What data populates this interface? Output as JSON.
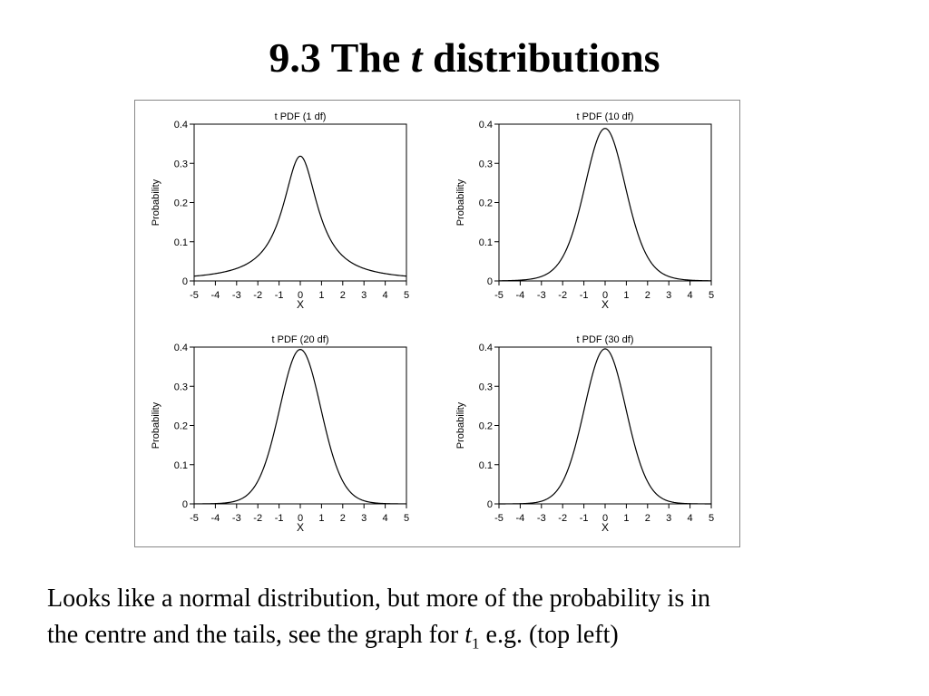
{
  "slide": {
    "title_prefix": "9.3 The ",
    "title_italic": "t",
    "title_suffix": " distributions"
  },
  "caption": {
    "line1": "Looks like a normal distribution, but more of the probability is in",
    "line2_prefix": "the centre and the tails, see the graph for ",
    "line2_var": "t",
    "line2_sub": "1",
    "line2_suffix": " e.g. (top left)"
  },
  "chart_data": [
    {
      "type": "line",
      "title": "t PDF (1 df)",
      "xlabel": "X",
      "ylabel": "Probability",
      "df": 1,
      "xlim": [
        -5,
        5
      ],
      "ylim": [
        0,
        0.4
      ],
      "xticks": [
        "-5",
        "-4",
        "-3",
        "-2",
        "-1",
        "0",
        "1",
        "2",
        "3",
        "4",
        "5"
      ],
      "yticks": [
        "0",
        "0.1",
        "0.2",
        "0.3",
        "0.4"
      ],
      "x": [
        -5,
        -4,
        -3,
        -2,
        -1.5,
        -1,
        -0.5,
        0,
        0.5,
        1,
        1.5,
        2,
        3,
        4,
        5
      ],
      "y": [
        0.012,
        0.019,
        0.032,
        0.064,
        0.098,
        0.159,
        0.255,
        0.318,
        0.255,
        0.159,
        0.098,
        0.064,
        0.032,
        0.019,
        0.012
      ]
    },
    {
      "type": "line",
      "title": "t PDF (10 df)",
      "xlabel": "X",
      "ylabel": "Probability",
      "df": 10,
      "xlim": [
        -5,
        5
      ],
      "ylim": [
        0,
        0.4
      ],
      "xticks": [
        "-5",
        "-4",
        "-3",
        "-2",
        "-1",
        "0",
        "1",
        "2",
        "3",
        "4",
        "5"
      ],
      "yticks": [
        "0",
        "0.1",
        "0.2",
        "0.3",
        "0.4"
      ],
      "x": [
        -5,
        -4,
        -3,
        -2,
        -1.5,
        -1,
        -0.5,
        0,
        0.5,
        1,
        1.5,
        2,
        3,
        4,
        5
      ],
      "y": [
        0.0004,
        0.002,
        0.011,
        0.061,
        0.127,
        0.23,
        0.34,
        0.389,
        0.34,
        0.23,
        0.127,
        0.061,
        0.011,
        0.002,
        0.0004
      ]
    },
    {
      "type": "line",
      "title": "t PDF (20 df)",
      "xlabel": "X",
      "ylabel": "Probability",
      "df": 20,
      "xlim": [
        -5,
        5
      ],
      "ylim": [
        0,
        0.4
      ],
      "xticks": [
        "-5",
        "-4",
        "-3",
        "-2",
        "-1",
        "0",
        "1",
        "2",
        "3",
        "4",
        "5"
      ],
      "yticks": [
        "0",
        "0.1",
        "0.2",
        "0.3",
        "0.4"
      ],
      "x": [
        -5,
        -4,
        -3,
        -2,
        -1.5,
        -1,
        -0.5,
        0,
        0.5,
        1,
        1.5,
        2,
        3,
        4,
        5
      ],
      "y": [
        0.0001,
        0.0006,
        0.007,
        0.058,
        0.128,
        0.236,
        0.347,
        0.394,
        0.347,
        0.236,
        0.128,
        0.058,
        0.007,
        0.0006,
        0.0001
      ]
    },
    {
      "type": "line",
      "title": "t PDF (30 df)",
      "xlabel": "X",
      "ylabel": "Probability",
      "df": 30,
      "xlim": [
        -5,
        5
      ],
      "ylim": [
        0,
        0.4
      ],
      "xticks": [
        "-5",
        "-4",
        "-3",
        "-2",
        "-1",
        "0",
        "1",
        "2",
        "3",
        "4",
        "5"
      ],
      "yticks": [
        "0",
        "0.1",
        "0.2",
        "0.3",
        "0.4"
      ],
      "x": [
        -5,
        -4,
        -3,
        -2,
        -1.5,
        -1,
        -0.5,
        0,
        0.5,
        1,
        1.5,
        2,
        3,
        4,
        5
      ],
      "y": [
        0.0001,
        0.0004,
        0.006,
        0.057,
        0.128,
        0.238,
        0.349,
        0.396,
        0.349,
        0.238,
        0.128,
        0.057,
        0.006,
        0.0004,
        0.0001
      ]
    }
  ]
}
